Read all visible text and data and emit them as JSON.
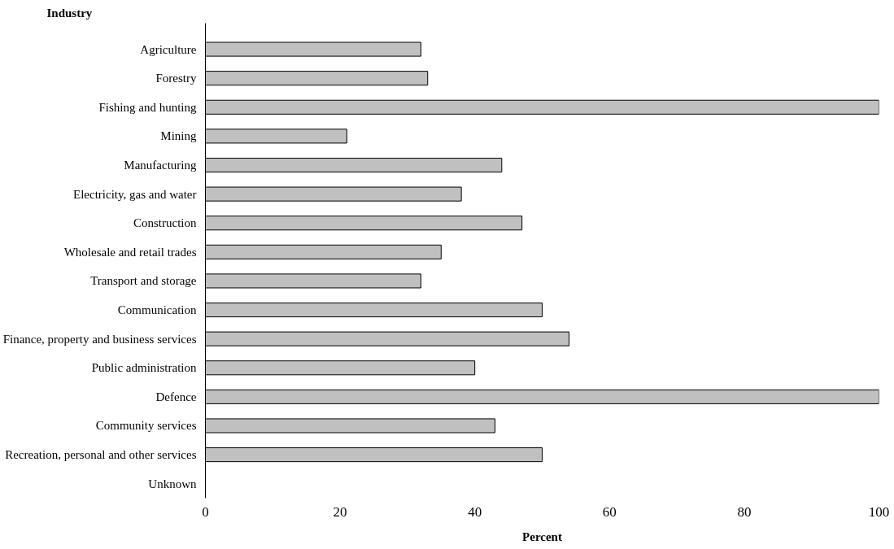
{
  "chart_data": {
    "type": "bar",
    "orientation": "horizontal",
    "ylabel": "Industry",
    "xlabel": "Percent",
    "categories": [
      "Agriculture",
      "Forestry",
      "Fishing and hunting",
      "Mining",
      "Manufacturing",
      "Electricity, gas and water",
      "Construction",
      "Wholesale and retail trades",
      "Transport and storage",
      "Communication",
      "Finance, property and business services",
      "Public administration",
      "Defence",
      "Community services",
      "Recreation, personal and other services",
      "Unknown"
    ],
    "values": [
      32,
      33,
      100,
      21,
      44,
      38,
      47,
      35,
      32,
      50,
      54,
      40,
      100,
      43,
      50,
      null
    ],
    "color": "#c0c0c0",
    "xlim": [
      0,
      100
    ],
    "xticks": [
      0,
      20,
      40,
      60,
      80,
      100
    ],
    "grid": false
  }
}
